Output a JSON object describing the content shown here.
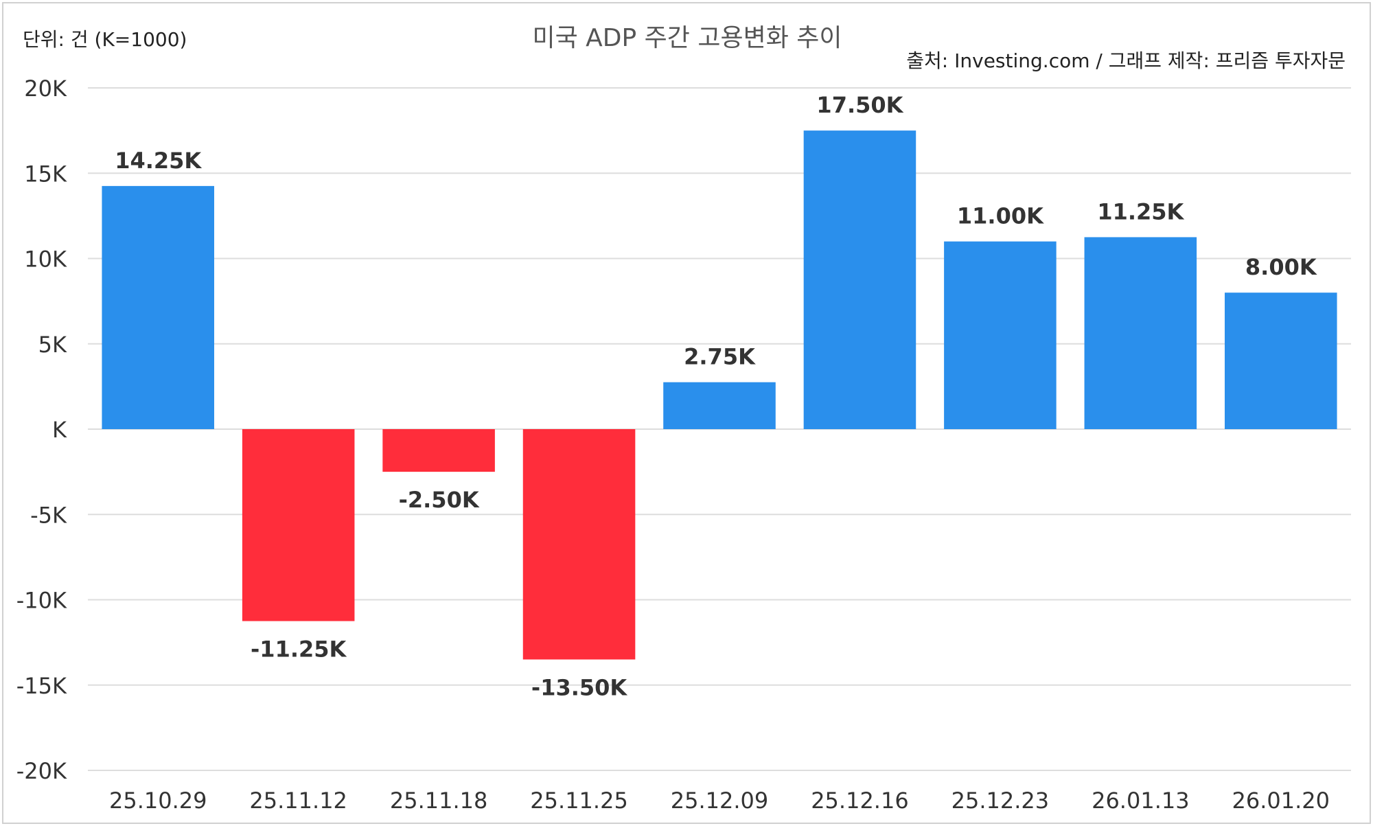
{
  "chart_data": {
    "type": "bar",
    "title": "미국 ADP 주간 고용변화 추이",
    "unit_note": "단위: 건 (K=1000)",
    "source_note": "출처: Investing.com / 그래프 제작: 프리즘 투자자문",
    "categories": [
      "25.10.29",
      "25.11.12",
      "25.11.18",
      "25.11.25",
      "25.12.09",
      "25.12.16",
      "25.12.23",
      "26.01.13",
      "26.01.20"
    ],
    "values": [
      14.25,
      -11.25,
      -2.5,
      -13.5,
      2.75,
      17.5,
      11.0,
      11.25,
      8.0
    ],
    "value_labels": [
      "14.25K",
      "-11.25K",
      "-2.50K",
      "-13.50K",
      "2.75K",
      "17.50K",
      "11.00K",
      "11.25K",
      "8.00K"
    ],
    "ylim": [
      -20,
      20
    ],
    "yticks": [
      20,
      15,
      10,
      5,
      0,
      -5,
      -10,
      -15,
      -20
    ],
    "ytick_labels": [
      "20K",
      "15K",
      "10K",
      "5K",
      "K",
      "-5K",
      "-10K",
      "-15K",
      "-20K"
    ],
    "xlabel": "",
    "ylabel": "",
    "grid": true,
    "colors": {
      "positive": "#2a8fec",
      "negative": "#ff2d3b",
      "grid": "#dddddd",
      "text": "#333333",
      "title": "#555555"
    }
  }
}
